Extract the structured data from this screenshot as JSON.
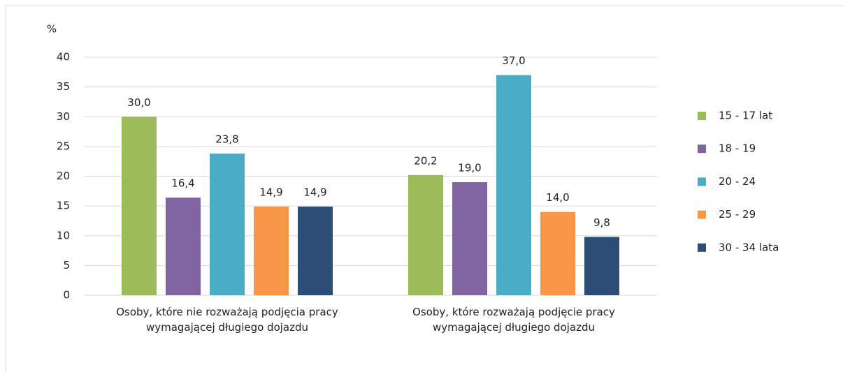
{
  "chart_data": {
    "type": "bar",
    "y_label": "%",
    "categories": [
      "Osoby, które nie rozważają podjęcia pracy wymagającej długiego dojazdu",
      "Osoby, które rozważają podjęcie pracy wymagającej długiego dojazdu"
    ],
    "series": [
      {
        "name": "15 - 17 lat",
        "color": "#9bbb59",
        "values": [
          30.0,
          20.2
        ],
        "value_labels": [
          "30,0",
          "20,2"
        ]
      },
      {
        "name": "18 - 19",
        "color": "#8064a2",
        "values": [
          16.4,
          19.0
        ],
        "value_labels": [
          "16,4",
          "19,0"
        ]
      },
      {
        "name": "20 - 24",
        "color": "#4bacc6",
        "values": [
          23.8,
          37.0
        ],
        "value_labels": [
          "23,8",
          "37,0"
        ]
      },
      {
        "name": "25 - 29",
        "color": "#f79646",
        "values": [
          14.9,
          14.0
        ],
        "value_labels": [
          "14,9",
          "14,0"
        ]
      },
      {
        "name": "30 - 34 lata",
        "color": "#2c4d75",
        "values": [
          14.9,
          9.8
        ],
        "value_labels": [
          "14,9",
          "9,8"
        ]
      }
    ],
    "ylim": [
      0,
      40
    ],
    "yticks": [
      0,
      5,
      10,
      15,
      20,
      25,
      30,
      35,
      40
    ],
    "grid": true,
    "legend": "right"
  }
}
